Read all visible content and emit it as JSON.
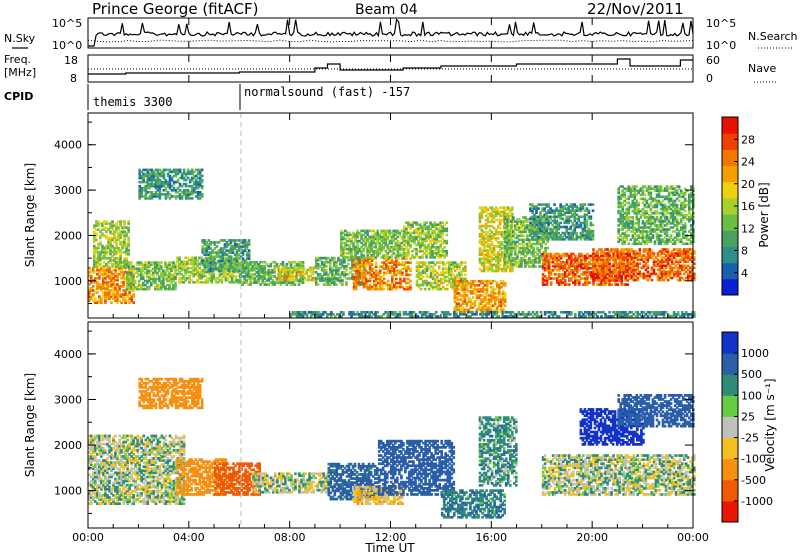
{
  "header": {
    "station": "Prince George (fitACF)",
    "beam": "Beam 04",
    "date": "22/Nov/2011"
  },
  "panel_labels": {
    "nsky": "N.Sky",
    "nsearch": "N.Search",
    "freq_line1": "Freq.",
    "freq_line2": "[MHz]",
    "nave": "Nave",
    "cpid": "CPID"
  },
  "cpid": {
    "modes": [
      {
        "label": "themis 3300",
        "start_hour": 0
      },
      {
        "label": "normalsound (fast) -157",
        "start_hour": 6
      }
    ]
  },
  "noise": {
    "ticks_left": [
      "10^5",
      "10^0"
    ],
    "ticks_right": [
      "10^5",
      "10^0"
    ]
  },
  "freq": {
    "ticks_left": [
      "18",
      "8"
    ],
    "ticks_right": [
      "60",
      "0"
    ]
  },
  "colorbars": {
    "power": {
      "label": "Power [dB]",
      "ticks": [
        "28",
        "24",
        "20",
        "16",
        "12",
        "8",
        "4"
      ],
      "colors": [
        "#0b1fd4",
        "#1a5fb0",
        "#2e8f8a",
        "#4aa060",
        "#6cc040",
        "#a6d02e",
        "#f0d010",
        "#f5a000",
        "#f07800",
        "#f04000",
        "#e81000"
      ]
    },
    "velocity": {
      "label": "Velocity [m s⁻¹]",
      "ticks": [
        "1000",
        "500",
        "100",
        "25",
        "-25",
        "-100",
        "-500",
        "-1000"
      ],
      "colors": [
        "#1232c8",
        "#2a5fa8",
        "#2f8a78",
        "#66cc44",
        "#c0c0bb",
        "#f3c020",
        "#f59010",
        "#f05a00",
        "#e81800"
      ]
    }
  },
  "chart_data": [
    {
      "type": "heatmap",
      "title": "Power",
      "xlabel": "Time UT",
      "ylabel": "Slant Range [km]",
      "xticks": [
        "00:00",
        "04:00",
        "08:00",
        "12:00",
        "16:00",
        "20:00",
        "00:00"
      ],
      "xlim_hours": [
        0,
        24
      ],
      "yticks": [
        "1000",
        "2000",
        "3000",
        "4000"
      ],
      "ylim": [
        180,
        4700
      ],
      "clabel": "Power [dB]",
      "cticks": [
        4,
        8,
        12,
        16,
        20,
        24,
        28
      ],
      "clim": [
        0,
        32
      ],
      "blobs": [
        {
          "t0": 0.0,
          "t1": 1.8,
          "r0": 500,
          "r1": 1300,
          "v": 23
        },
        {
          "t0": 0.2,
          "t1": 1.6,
          "r0": 1300,
          "r1": 2300,
          "v": 15
        },
        {
          "t0": 1.5,
          "t1": 3.5,
          "r0": 800,
          "r1": 1400,
          "v": 13
        },
        {
          "t0": 2.0,
          "t1": 4.5,
          "r0": 2800,
          "r1": 3450,
          "v": 9
        },
        {
          "t0": 3.5,
          "t1": 6.0,
          "r0": 950,
          "r1": 1500,
          "v": 15
        },
        {
          "t0": 4.5,
          "t1": 6.4,
          "r0": 1200,
          "r1": 1900,
          "v": 10
        },
        {
          "t0": 6.0,
          "t1": 8.5,
          "r0": 900,
          "r1": 1400,
          "v": 12
        },
        {
          "t0": 7.5,
          "t1": 9.0,
          "r0": 1000,
          "r1": 1300,
          "v": 19
        },
        {
          "t0": 9.0,
          "t1": 11.0,
          "r0": 900,
          "r1": 1500,
          "v": 11
        },
        {
          "t0": 10.5,
          "t1": 12.8,
          "r0": 800,
          "r1": 1500,
          "v": 24
        },
        {
          "t0": 10.0,
          "t1": 12.5,
          "r0": 1500,
          "r1": 2100,
          "v": 13
        },
        {
          "t0": 12.5,
          "t1": 14.2,
          "r0": 1500,
          "r1": 2300,
          "v": 14
        },
        {
          "t0": 13.0,
          "t1": 15.0,
          "r0": 800,
          "r1": 1400,
          "v": 16
        },
        {
          "t0": 14.5,
          "t1": 16.5,
          "r0": 300,
          "r1": 1000,
          "v": 22
        },
        {
          "t0": 15.5,
          "t1": 16.8,
          "r0": 1200,
          "r1": 2600,
          "v": 18
        },
        {
          "t0": 16.5,
          "t1": 18.2,
          "r0": 1300,
          "r1": 2400,
          "v": 13
        },
        {
          "t0": 17.5,
          "t1": 20.0,
          "r0": 1900,
          "r1": 2700,
          "v": 9
        },
        {
          "t0": 18.0,
          "t1": 21.5,
          "r0": 900,
          "r1": 1600,
          "v": 26
        },
        {
          "t0": 20.0,
          "t1": 24.0,
          "r0": 1000,
          "r1": 1700,
          "v": 26
        },
        {
          "t0": 21.0,
          "t1": 24.0,
          "r0": 1800,
          "r1": 3100,
          "v": 12
        },
        {
          "t0": 8.0,
          "t1": 24.0,
          "r0": 200,
          "r1": 330,
          "v": 8
        }
      ]
    },
    {
      "type": "heatmap",
      "title": "Velocity",
      "xlabel": "Time UT",
      "ylabel": "Slant Range [km]",
      "xticks": [
        "00:00",
        "04:00",
        "08:00",
        "12:00",
        "16:00",
        "20:00",
        "00:00"
      ],
      "xlim_hours": [
        0,
        24
      ],
      "yticks": [
        "1000",
        "2000",
        "3000",
        "4000"
      ],
      "ylim": [
        180,
        4700
      ],
      "clabel": "Velocity [m s⁻¹]",
      "cticks": [
        1000,
        500,
        100,
        25,
        -25,
        -100,
        -500,
        -1000
      ],
      "blobs": [
        {
          "t0": 0.0,
          "t1": 3.8,
          "r0": 700,
          "r1": 2200,
          "v": 0
        },
        {
          "t0": 2.0,
          "t1": 4.5,
          "r0": 2800,
          "r1": 3450,
          "v": -200
        },
        {
          "t0": 3.5,
          "t1": 5.5,
          "r0": 900,
          "r1": 1700,
          "v": -300
        },
        {
          "t0": 5.0,
          "t1": 6.8,
          "r0": 900,
          "r1": 1600,
          "v": -800
        },
        {
          "t0": 6.5,
          "t1": 9.5,
          "r0": 950,
          "r1": 1400,
          "v": 0
        },
        {
          "t0": 9.5,
          "t1": 11.5,
          "r0": 800,
          "r1": 1600,
          "v": 150
        },
        {
          "t0": 10.5,
          "t1": 12.5,
          "r0": 700,
          "r1": 1100,
          "v": -60
        },
        {
          "t0": 11.5,
          "t1": 14.5,
          "r0": 900,
          "r1": 2100,
          "v": 400
        },
        {
          "t0": 14.0,
          "t1": 16.5,
          "r0": 400,
          "r1": 1000,
          "v": 80
        },
        {
          "t0": 15.5,
          "t1": 17.0,
          "r0": 1100,
          "r1": 2600,
          "v": 60
        },
        {
          "t0": 18.0,
          "t1": 24.0,
          "r0": 900,
          "r1": 1800,
          "v": 0
        },
        {
          "t0": 19.5,
          "t1": 22.0,
          "r0": 2000,
          "r1": 2800,
          "v": 700
        },
        {
          "t0": 21.0,
          "t1": 24.0,
          "r0": 2400,
          "r1": 3100,
          "v": 400
        }
      ]
    }
  ]
}
